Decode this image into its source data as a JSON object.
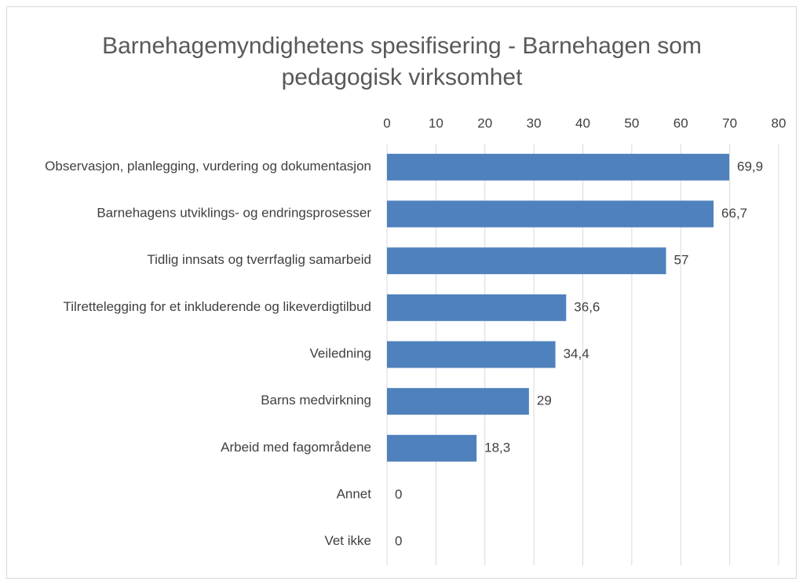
{
  "chart_data": {
    "type": "bar",
    "orientation": "horizontal",
    "title": "Barnehagemyndighetens spesifisering - Barnehagen som pedagogisk virksomhet",
    "categories": [
      "Observasjon, planlegging, vurdering og dokumentasjon",
      "Barnehagens utviklings- og endringsprosesser",
      "Tidlig innsats og tverrfaglig samarbeid",
      "Tilrettelegging for et inkluderende og likeverdigtilbud",
      "Veiledning",
      "Barns medvirkning",
      "Arbeid med fagområdene",
      "Annet",
      "Vet ikke"
    ],
    "values": [
      69.9,
      66.7,
      57,
      36.6,
      34.4,
      29,
      18.3,
      0,
      0
    ],
    "value_labels": [
      "69,9",
      "66,7",
      "57",
      "36,6",
      "34,4",
      "29",
      "18,3",
      "0",
      "0"
    ],
    "color": "#4f81bd",
    "xlim": [
      0,
      80
    ],
    "xticks": [
      0,
      10,
      20,
      30,
      40,
      50,
      60,
      70,
      80
    ],
    "grid": true
  }
}
